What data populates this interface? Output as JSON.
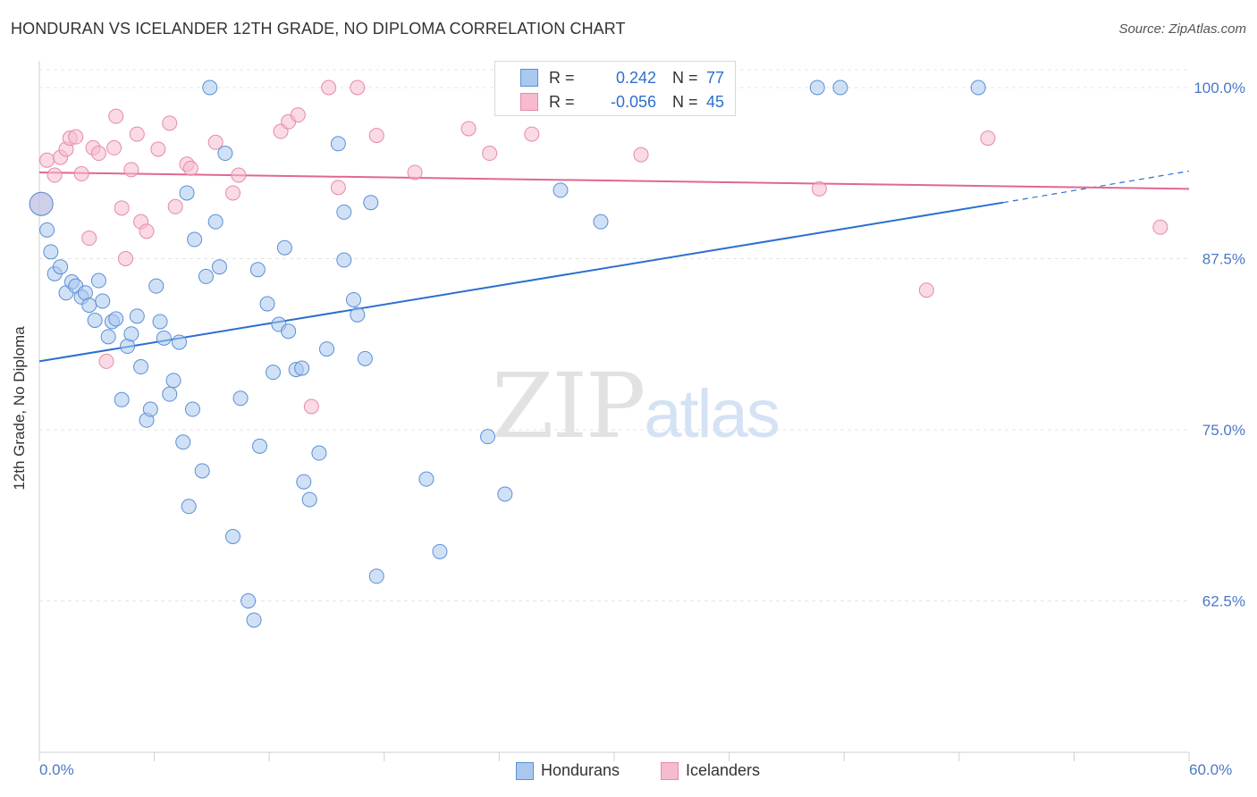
{
  "title": "HONDURAN VS ICELANDER 12TH GRADE, NO DIPLOMA CORRELATION CHART",
  "source": "Source: ZipAtlas.com",
  "watermark": {
    "zip": "ZIP",
    "atlas": "atlas"
  },
  "colors": {
    "blue_fill": "#aac8ef",
    "blue_stroke": "#5b8fd6",
    "blue_line": "#2b6fcf",
    "pink_fill": "#f6bccd",
    "pink_stroke": "#e68aa6",
    "pink_line": "#e0688f",
    "grid": "#e4e4e4",
    "tick_label": "#4a79c6"
  },
  "stats": {
    "r_label": "R =",
    "n_label": "N =",
    "hondurans": {
      "r": "0.242",
      "n": "77"
    },
    "icelanders": {
      "r": "-0.056",
      "n": "45"
    }
  },
  "chart_data": {
    "type": "scatter",
    "title": "HONDURAN VS ICELANDER 12TH GRADE, NO DIPLOMA CORRELATION CHART",
    "xlabel": "",
    "ylabel": "12th Grade, No Diploma",
    "xlim": [
      0,
      60
    ],
    "ylim": [
      50,
      102
    ],
    "x_tick_labels": [
      "0.0%",
      "60.0%"
    ],
    "y_ticks": [
      100,
      87.5,
      75,
      62.5
    ],
    "y_tick_labels": [
      "100.0%",
      "87.5%",
      "75.0%",
      "62.5%"
    ],
    "grid": true,
    "legend": "bottom",
    "series": [
      {
        "name": "Hondurans",
        "trend": {
          "x": [
            0,
            50.3
          ],
          "y": [
            80.0,
            91.6
          ],
          "dashed_to": [
            60,
            93.9
          ]
        },
        "points": [
          [
            0.1,
            91.5
          ],
          [
            0.4,
            89.6
          ],
          [
            0.6,
            88.0
          ],
          [
            0.8,
            86.4
          ],
          [
            1.1,
            86.9
          ],
          [
            1.4,
            85.0
          ],
          [
            1.7,
            85.8
          ],
          [
            1.9,
            85.5
          ],
          [
            2.2,
            84.7
          ],
          [
            2.4,
            85.0
          ],
          [
            2.6,
            84.1
          ],
          [
            2.9,
            83.0
          ],
          [
            3.1,
            85.9
          ],
          [
            3.3,
            84.4
          ],
          [
            3.6,
            81.8
          ],
          [
            3.8,
            82.9
          ],
          [
            4.0,
            83.1
          ],
          [
            4.3,
            77.2
          ],
          [
            4.6,
            81.1
          ],
          [
            4.8,
            82.0
          ],
          [
            5.1,
            83.3
          ],
          [
            5.3,
            79.6
          ],
          [
            5.6,
            75.7
          ],
          [
            5.8,
            76.5
          ],
          [
            6.1,
            85.5
          ],
          [
            6.3,
            82.9
          ],
          [
            6.5,
            81.7
          ],
          [
            6.8,
            77.6
          ],
          [
            7.0,
            78.6
          ],
          [
            7.3,
            81.4
          ],
          [
            7.5,
            74.1
          ],
          [
            7.7,
            92.3
          ],
          [
            7.8,
            69.4
          ],
          [
            8.0,
            76.5
          ],
          [
            8.1,
            88.9
          ],
          [
            8.5,
            72.0
          ],
          [
            8.7,
            86.2
          ],
          [
            8.9,
            100.0
          ],
          [
            9.2,
            90.2
          ],
          [
            9.4,
            86.9
          ],
          [
            9.7,
            95.2
          ],
          [
            10.1,
            67.2
          ],
          [
            10.5,
            77.3
          ],
          [
            10.9,
            62.5
          ],
          [
            11.2,
            61.1
          ],
          [
            11.4,
            86.7
          ],
          [
            11.5,
            73.8
          ],
          [
            11.9,
            84.2
          ],
          [
            12.2,
            79.2
          ],
          [
            12.5,
            82.7
          ],
          [
            12.8,
            88.3
          ],
          [
            13.0,
            82.2
          ],
          [
            13.4,
            79.4
          ],
          [
            13.7,
            79.5
          ],
          [
            13.8,
            71.2
          ],
          [
            14.1,
            69.9
          ],
          [
            14.6,
            73.3
          ],
          [
            15.0,
            80.9
          ],
          [
            15.6,
            95.9
          ],
          [
            15.9,
            87.4
          ],
          [
            15.9,
            90.9
          ],
          [
            16.4,
            84.5
          ],
          [
            16.6,
            83.4
          ],
          [
            17.0,
            80.2
          ],
          [
            17.3,
            91.6
          ],
          [
            17.6,
            64.3
          ],
          [
            20.2,
            71.4
          ],
          [
            20.9,
            66.1
          ],
          [
            23.4,
            74.5
          ],
          [
            24.3,
            70.3
          ],
          [
            24.8,
            100.0
          ],
          [
            25.8,
            100.0
          ],
          [
            27.2,
            92.5
          ],
          [
            29.3,
            90.2
          ],
          [
            40.6,
            100.0
          ],
          [
            41.8,
            100.0
          ],
          [
            49.0,
            100.0
          ]
        ]
      },
      {
        "name": "Icelanders",
        "trend": {
          "x": [
            0,
            60
          ],
          "y": [
            93.8,
            92.6
          ]
        },
        "points": [
          [
            0.1,
            91.5
          ],
          [
            0.4,
            94.7
          ],
          [
            0.8,
            93.6
          ],
          [
            1.1,
            94.9
          ],
          [
            1.4,
            95.5
          ],
          [
            1.6,
            96.3
          ],
          [
            1.9,
            96.4
          ],
          [
            2.2,
            93.7
          ],
          [
            2.6,
            89.0
          ],
          [
            2.8,
            95.6
          ],
          [
            3.1,
            95.2
          ],
          [
            3.5,
            80.0
          ],
          [
            3.9,
            95.6
          ],
          [
            4.0,
            97.9
          ],
          [
            4.3,
            91.2
          ],
          [
            4.5,
            87.5
          ],
          [
            4.8,
            94.0
          ],
          [
            5.1,
            96.6
          ],
          [
            5.3,
            90.2
          ],
          [
            5.6,
            89.5
          ],
          [
            6.2,
            95.5
          ],
          [
            6.8,
            97.4
          ],
          [
            7.1,
            91.3
          ],
          [
            7.7,
            94.4
          ],
          [
            7.9,
            94.1
          ],
          [
            9.2,
            96.0
          ],
          [
            10.1,
            92.3
          ],
          [
            10.4,
            93.6
          ],
          [
            12.6,
            96.8
          ],
          [
            13.0,
            97.5
          ],
          [
            13.5,
            98.0
          ],
          [
            14.2,
            76.7
          ],
          [
            15.1,
            100.0
          ],
          [
            15.6,
            92.7
          ],
          [
            16.6,
            100.0
          ],
          [
            17.6,
            96.5
          ],
          [
            19.6,
            93.8
          ],
          [
            22.4,
            97.0
          ],
          [
            23.5,
            95.2
          ],
          [
            25.7,
            96.6
          ],
          [
            31.4,
            95.1
          ],
          [
            40.7,
            92.6
          ],
          [
            46.3,
            85.2
          ],
          [
            49.5,
            96.3
          ],
          [
            58.5,
            89.8
          ]
        ]
      }
    ]
  }
}
